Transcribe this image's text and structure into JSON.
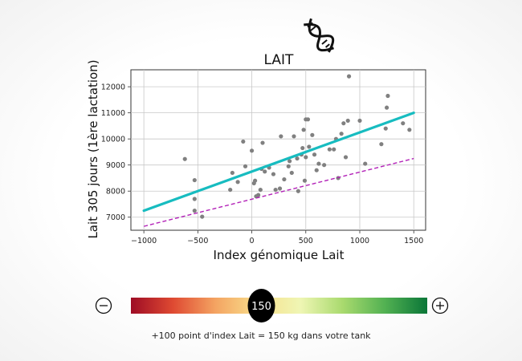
{
  "chart_data": {
    "type": "scatter",
    "title": "LAIT",
    "xlabel": "Index génomique Lait",
    "ylabel": "Lait 305 jours (1ère lactation)",
    "xlim": [
      -1120,
      1610
    ],
    "ylim": [
      6500,
      12650
    ],
    "x_ticks": [
      -1000,
      -500,
      0,
      500,
      1000,
      1500
    ],
    "y_ticks": [
      7000,
      8000,
      9000,
      10000,
      11000,
      12000
    ],
    "grid": true,
    "points": [
      [
        -620,
        9230
      ],
      [
        -530,
        8420
      ],
      [
        -530,
        7700
      ],
      [
        -530,
        7250
      ],
      [
        -460,
        7020
      ],
      [
        -200,
        8050
      ],
      [
        -180,
        8700
      ],
      [
        -130,
        8350
      ],
      [
        -80,
        9900
      ],
      [
        -60,
        8950
      ],
      [
        0,
        9550
      ],
      [
        20,
        8300
      ],
      [
        30,
        8400
      ],
      [
        40,
        7800
      ],
      [
        60,
        7850
      ],
      [
        80,
        8050
      ],
      [
        90,
        8850
      ],
      [
        100,
        9850
      ],
      [
        120,
        8750
      ],
      [
        160,
        8900
      ],
      [
        200,
        8650
      ],
      [
        220,
        8050
      ],
      [
        260,
        8100
      ],
      [
        270,
        10100
      ],
      [
        300,
        8450
      ],
      [
        340,
        8950
      ],
      [
        350,
        9150
      ],
      [
        370,
        8700
      ],
      [
        390,
        10100
      ],
      [
        420,
        9250
      ],
      [
        430,
        8000
      ],
      [
        460,
        9400
      ],
      [
        470,
        9650
      ],
      [
        480,
        10350
      ],
      [
        490,
        8400
      ],
      [
        500,
        9300
      ],
      [
        500,
        10750
      ],
      [
        520,
        10750
      ],
      [
        530,
        9700
      ],
      [
        560,
        10150
      ],
      [
        580,
        9400
      ],
      [
        600,
        8800
      ],
      [
        620,
        9050
      ],
      [
        670,
        9000
      ],
      [
        720,
        9600
      ],
      [
        760,
        9600
      ],
      [
        780,
        10000
      ],
      [
        800,
        8500
      ],
      [
        830,
        10200
      ],
      [
        850,
        10600
      ],
      [
        870,
        9300
      ],
      [
        890,
        10700
      ],
      [
        900,
        12400
      ],
      [
        1000,
        10700
      ],
      [
        1050,
        9050
      ],
      [
        1200,
        9800
      ],
      [
        1240,
        10400
      ],
      [
        1250,
        11200
      ],
      [
        1260,
        11650
      ],
      [
        1400,
        10600
      ],
      [
        1460,
        10350
      ]
    ],
    "series": [
      {
        "type": "regression",
        "style": "solid",
        "color": "#17bcc0",
        "x": [
          -1000,
          1500
        ],
        "y": [
          7250,
          11000
        ]
      },
      {
        "type": "line",
        "style": "dashed",
        "color": "#b322b8",
        "x": [
          -1000,
          1500
        ],
        "y": [
          6650,
          9250
        ]
      }
    ],
    "point_color": "#808080"
  },
  "slider": {
    "value": 150,
    "min_value": 0,
    "max_value": 300,
    "value_label": "150",
    "minus_symbol": "−",
    "plus_symbol": "+",
    "gradient": [
      "#9e0c25",
      "#df4a32",
      "#f4a462",
      "#f8df8c",
      "#eff6b4",
      "#a9da6e",
      "#52b152",
      "#0a7638"
    ]
  },
  "caption": "+100 point d'index Lait = 150 kg dans votre tank",
  "icons": {
    "title_icon": "dna-icon"
  }
}
